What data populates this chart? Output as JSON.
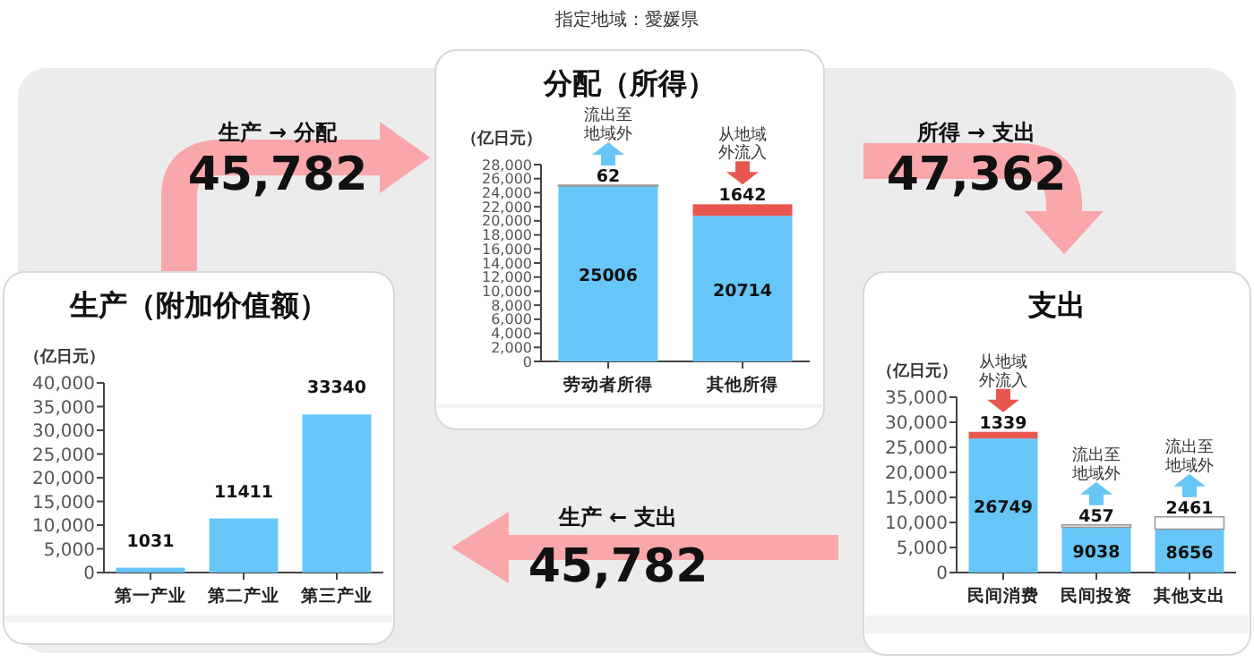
{
  "chart_data": [
    {
      "type": "bar",
      "title": "分配（所得）",
      "ylabel": "（亿日元）",
      "categories": [
        "劳动者所得",
        "其他所得"
      ],
      "stacked": true,
      "data_labels": true,
      "series": [
        {
          "color": "#66c6f7",
          "values": [
            25006,
            20714
          ]
        },
        {
          "color": "#e8574e",
          "values": [
            null,
            1642
          ]
        },
        {
          "color": "#ffffff",
          "values": [
            62,
            null
          ]
        }
      ],
      "ylim": [
        0,
        28000
      ],
      "yticks": [
        {
          "value": 0,
          "label": "0"
        },
        {
          "value": 2000,
          "label": "2,000"
        },
        {
          "value": 4000,
          "label": "4,000"
        },
        {
          "value": 6000,
          "label": "6,000"
        },
        {
          "value": 8000,
          "label": "8,000"
        },
        {
          "value": 10000,
          "label": "10,000"
        },
        {
          "value": 12000,
          "label": "12,000"
        },
        {
          "value": 14000,
          "label": "14,000"
        },
        {
          "value": 16000,
          "label": "16,000"
        },
        {
          "value": 18000,
          "label": "18,000"
        },
        {
          "value": 20000,
          "label": "20,000"
        },
        {
          "value": 22000,
          "label": "22,000"
        },
        {
          "value": 24000,
          "label": "24,000"
        },
        {
          "value": 26000,
          "label": "26,000"
        },
        {
          "value": 28000,
          "label": "28,000"
        }
      ],
      "annotations": [
        {
          "text": "流出至地域外",
          "x": "劳动者所得",
          "y": 25068
        },
        {
          "text": "从地域外流入",
          "x": "其他所得",
          "y": 22356
        }
      ]
    },
    {
      "type": "bar",
      "title": "生产（附加价值额）",
      "ylabel": "（亿日元）",
      "categories": [
        "第一产业",
        "第二产业",
        "第三产业"
      ],
      "data_labels": true,
      "values": [
        1031,
        11411,
        33340
      ],
      "color": "#66c6f7",
      "ylim": [
        0,
        40000
      ],
      "yticks": [
        {
          "value": 0,
          "label": "0"
        },
        {
          "value": 5000,
          "label": "5,000"
        },
        {
          "value": 10000,
          "label": "10,000"
        },
        {
          "value": 15000,
          "label": "15,000"
        },
        {
          "value": 20000,
          "label": "20,000"
        },
        {
          "value": 25000,
          "label": "25,000"
        },
        {
          "value": 30000,
          "label": "30,000"
        },
        {
          "value": 35000,
          "label": "35,000"
        },
        {
          "value": 40000,
          "label": "40,000"
        }
      ]
    },
    {
      "type": "bar",
      "title": "支出",
      "ylabel": "（亿日元）",
      "categories": [
        "民间消费",
        "民间投资",
        "其他支出"
      ],
      "stacked": true,
      "data_labels": true,
      "series": [
        {
          "color": "#66c6f7",
          "values": [
            26749,
            9038,
            8656
          ]
        },
        {
          "color": "#e8574e",
          "values": [
            1339,
            null,
            null
          ]
        },
        {
          "color": "#ffffff",
          "values": [
            null,
            457,
            2461
          ]
        }
      ],
      "ylim": [
        0,
        35000
      ],
      "yticks": [
        {
          "value": 0,
          "label": "0"
        },
        {
          "value": 5000,
          "label": "5,000"
        },
        {
          "value": 10000,
          "label": "10,000"
        },
        {
          "value": 15000,
          "label": "15,000"
        },
        {
          "value": 20000,
          "label": "20,000"
        },
        {
          "value": 25000,
          "label": "25,000"
        },
        {
          "value": 30000,
          "label": "30,000"
        },
        {
          "value": 35000,
          "label": "35,000"
        }
      ],
      "annotations": [
        {
          "text": "从地域外流入",
          "x": "民间消费",
          "y": 28088
        },
        {
          "text": "流出至地域外",
          "x": "民间投资",
          "y": 9495
        },
        {
          "text": "流出至地域外",
          "x": "其他支出",
          "y": 11117
        }
      ]
    },
    {
      "type": "other",
      "title": "指定地域：愛媛県",
      "annotations": [
        "生产 → 分配",
        "45,782",
        "所得 → 支出",
        "47,362",
        "生产 ← 支出",
        "45,782"
      ]
    }
  ]
}
